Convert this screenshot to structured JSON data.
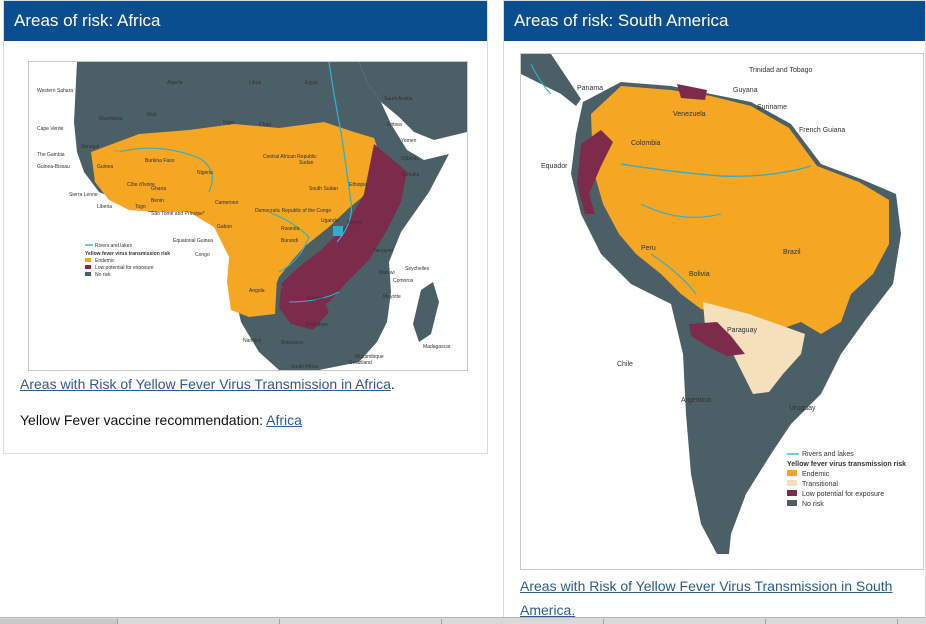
{
  "africa": {
    "header": "Areas of risk: Africa",
    "link_text": "Areas with Risk of Yellow Fever Virus Transmission in Africa",
    "link_suffix": ".",
    "rec_prefix": "Yellow Fever vaccine recommendation: ",
    "rec_link": "Africa",
    "map": {
      "legend": {
        "rivers": "Rivers and lakes",
        "title": "Yellow fever virus transmission risk",
        "endemic": "Endemic",
        "low": "Low potential for exposure",
        "none": "No risk"
      },
      "labels": {
        "western_sahara": "Western Sahara",
        "algeria": "Algeria",
        "libya": "Libya",
        "egypt": "Egypt",
        "saudi_arabia": "Saudi Arabia",
        "cape_verde": "Cape Verde",
        "mauritania": "Mauritania",
        "mali": "Mali",
        "niger": "Niger",
        "chad": "Chad",
        "eritrea": "Eritrea",
        "yemen": "Yemen",
        "senegal": "Senegal",
        "gambia": "The Gambia",
        "guinea_bissau": "Guinea-Bissau",
        "guinea": "Guinea",
        "burkina_faso": "Burkina Faso",
        "nigeria": "Nigeria",
        "sudan": "Sudan",
        "djibouti": "Djibouti",
        "somalia": "Somalia",
        "sierra_leone": "Sierra Leone",
        "cote_divoire": "Côte d'Ivoire",
        "ghana": "Ghana",
        "liberia": "Liberia",
        "togo": "Togo",
        "benin": "Benin",
        "car": "Central African Republic",
        "south_sudan": "South Sudan",
        "ethiopia": "Ethiopia",
        "sao_tome": "São Tomé and Príncipe*",
        "cameroon": "Cameroon",
        "drc": "Democratic Republic of the Congo",
        "uganda": "Uganda",
        "kenya": "Kenya",
        "eq_guinea": "Equatorial Guinea",
        "gabon": "Gabon",
        "rwanda": "Rwanda",
        "burundi": "Burundi",
        "congo": "Congo",
        "tanzania": "Tanzania",
        "seychelles": "Seychelles",
        "malawi": "Malawi",
        "comoros": "Comoros",
        "angola": "Angola",
        "zambia": "Zambia",
        "mayotte": "Mayotte",
        "zimbabwe": "Zimbabwe",
        "namibia": "Namibia",
        "botswana": "Botswana",
        "madagascar": "Madagascar",
        "mozambique": "Mozambique",
        "swaziland": "Swaziland",
        "south_africa": "South Africa"
      }
    }
  },
  "south_america": {
    "header": "Areas of risk: South America",
    "link_text": "Areas with Risk of Yellow Fever Virus Transmission in South America.",
    "map": {
      "legend": {
        "rivers": "Rivers and lakes",
        "title": "Yellow fever virus transmission risk",
        "endemic": "Endemic",
        "transitional": "Transitional",
        "low": "Low potential for exposure",
        "none": "No risk"
      },
      "labels": {
        "trinidad": "Trinidad and Tobago",
        "panama": "Panama",
        "guyana": "Guyana",
        "suriname": "Suriname",
        "venezuela": "Venezuela",
        "french_guiana": "French Guiana",
        "colombia": "Colombia",
        "ecuador": "Equador",
        "peru": "Peru",
        "brazil": "Brazil",
        "bolivia": "Bolivia",
        "paraguay": "Paraguay",
        "chile": "Chile",
        "argentina": "Argentina",
        "uruguay": "Uruguay"
      }
    }
  },
  "colors": {
    "header_bg": "#0b4e8f",
    "endemic": "#f5a623",
    "low": "#7d2b4a",
    "no_risk": "#4b5f66",
    "transitional": "#f5e0bc",
    "river": "#2ab1cf",
    "link": "#2a5c8f"
  }
}
